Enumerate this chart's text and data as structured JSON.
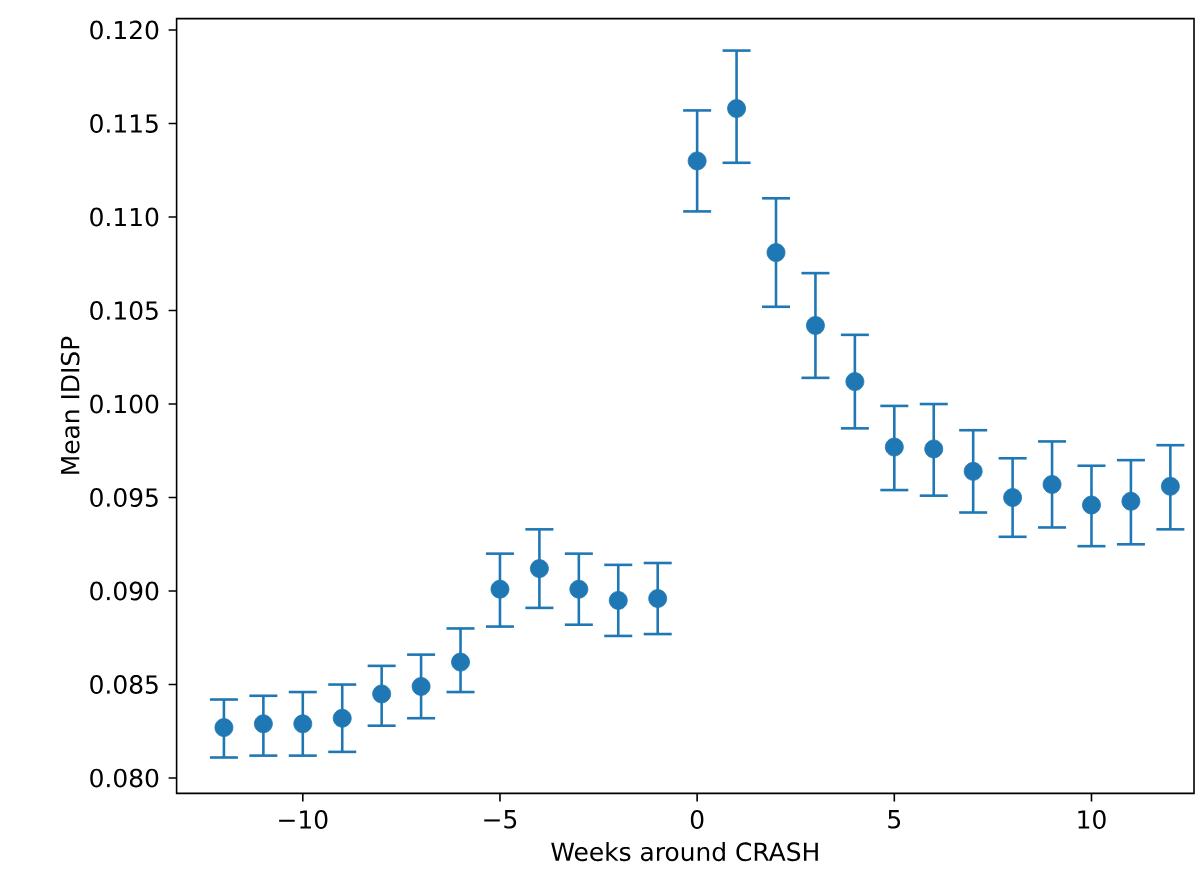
{
  "chart_data": {
    "type": "scatter",
    "xlabel": "Weeks around CRASH",
    "ylabel": "Mean IDISP",
    "marker": "circle",
    "grid": false,
    "x": [
      -12,
      -11,
      -10,
      -9,
      -8,
      -7,
      -6,
      -5,
      -4,
      -3,
      -2,
      -1,
      0,
      1,
      2,
      3,
      4,
      5,
      6,
      7,
      8,
      9,
      10,
      11,
      12
    ],
    "series": [
      {
        "color": "#1f77b4",
        "values": [
          0.0827,
          0.0829,
          0.0829,
          0.0832,
          0.0845,
          0.0849,
          0.0862,
          0.0901,
          0.0912,
          0.0901,
          0.0895,
          0.0896,
          0.113,
          0.1158,
          0.1081,
          0.1042,
          0.1012,
          0.0977,
          0.0976,
          0.0964,
          0.095,
          0.0957,
          0.0946,
          0.0948,
          0.0956
        ],
        "errors": [
          [
            0.0811,
            0.0842
          ],
          [
            0.0812,
            0.0844
          ],
          [
            0.0812,
            0.0846
          ],
          [
            0.0814,
            0.085
          ],
          [
            0.0828,
            0.086
          ],
          [
            0.0832,
            0.0866
          ],
          [
            0.0846,
            0.088
          ],
          [
            0.0881,
            0.092
          ],
          [
            0.0891,
            0.0933
          ],
          [
            0.0882,
            0.092
          ],
          [
            0.0876,
            0.0914
          ],
          [
            0.0877,
            0.0915
          ],
          [
            0.1103,
            0.1157
          ],
          [
            0.1129,
            0.1189
          ],
          [
            0.1052,
            0.111
          ],
          [
            0.1014,
            0.107
          ],
          [
            0.0987,
            0.1037
          ],
          [
            0.0954,
            0.0999
          ],
          [
            0.0951,
            0.1
          ],
          [
            0.0942,
            0.0986
          ],
          [
            0.0929,
            0.0971
          ],
          [
            0.0934,
            0.098
          ],
          [
            0.0924,
            0.0967
          ],
          [
            0.0925,
            0.097
          ],
          [
            0.0933,
            0.0978
          ]
        ]
      }
    ],
    "xlim": [
      -13.2,
      12.6
    ],
    "ylim": [
      0.07918,
      0.12061
    ],
    "xticks": [
      {
        "value": -10,
        "label": "−10"
      },
      {
        "value": -5,
        "label": "−5"
      },
      0,
      5,
      10
    ],
    "yticks": [
      {
        "value": 0.08,
        "label": "0.080"
      },
      {
        "value": 0.085,
        "label": "0.085"
      },
      {
        "value": 0.09,
        "label": "0.090"
      },
      {
        "value": 0.095,
        "label": "0.095"
      },
      {
        "value": 0.1,
        "label": "0.100"
      },
      {
        "value": 0.105,
        "label": "0.105"
      },
      {
        "value": 0.11,
        "label": "0.110"
      },
      {
        "value": 0.115,
        "label": "0.115"
      },
      {
        "value": 0.12,
        "label": "0.120"
      }
    ]
  }
}
